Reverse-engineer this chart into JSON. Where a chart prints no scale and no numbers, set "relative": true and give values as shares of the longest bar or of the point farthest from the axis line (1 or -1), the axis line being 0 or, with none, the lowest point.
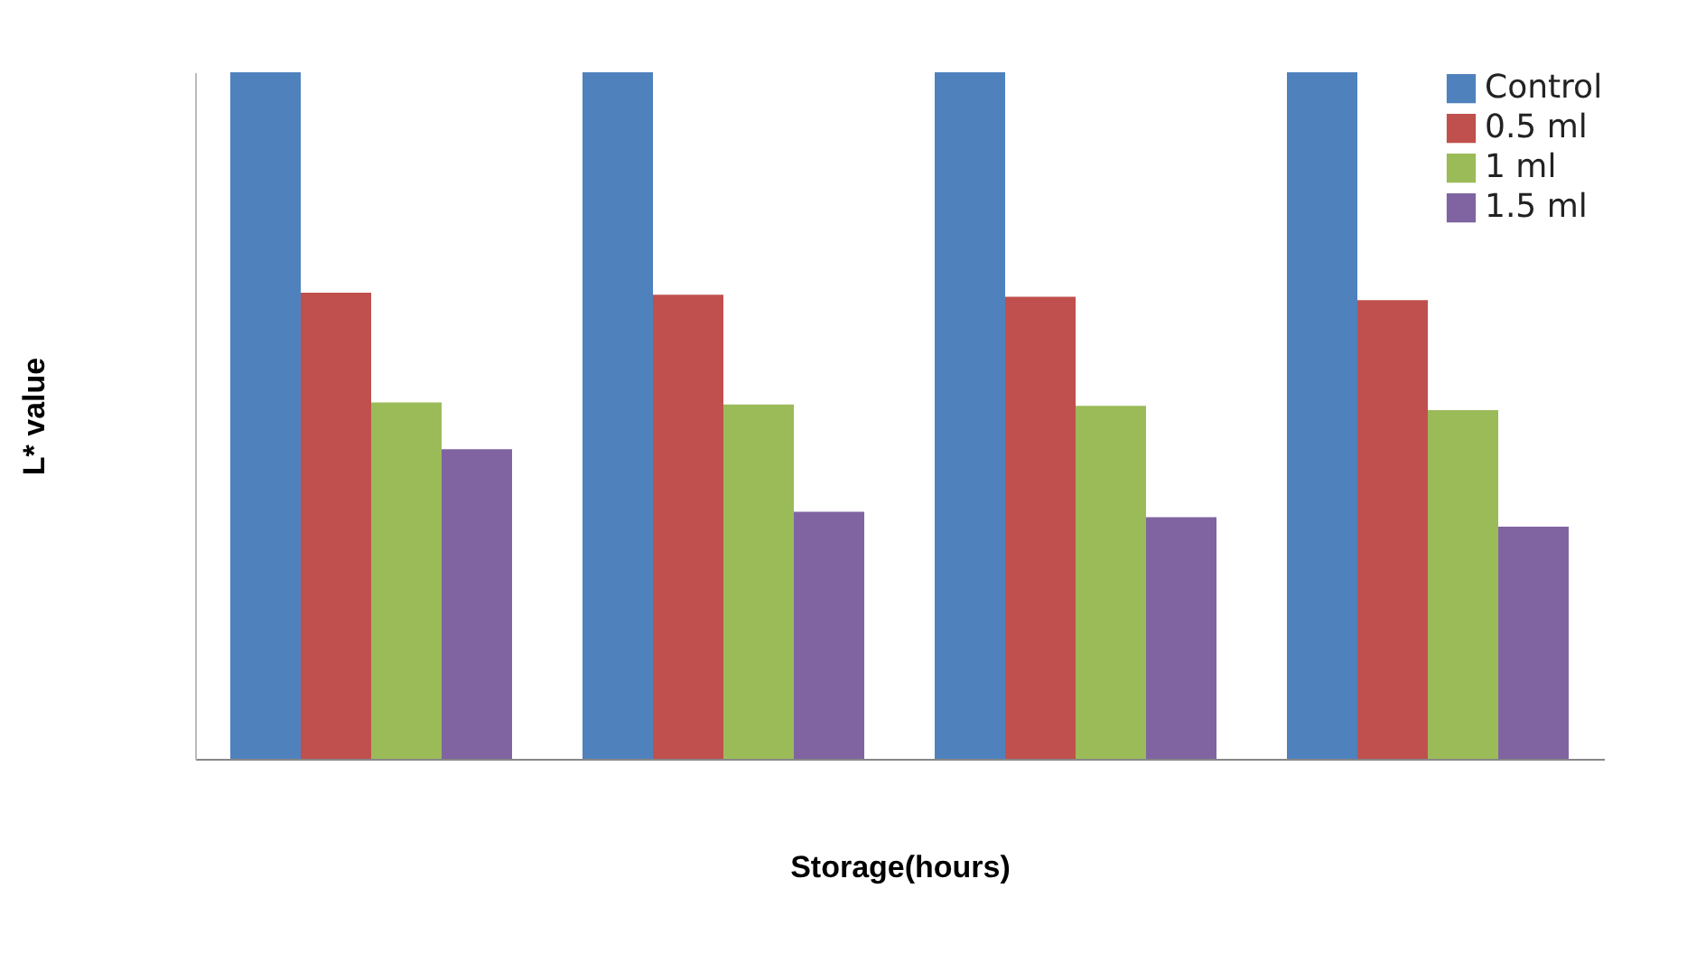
{
  "chart_data": {
    "type": "bar",
    "relative": true,
    "xlabel": "Storage(hours)",
    "ylabel": "L* value",
    "categories": [
      null,
      null,
      null,
      null
    ],
    "series": [
      {
        "name": "Control",
        "color": "#4f81bd",
        "values": [
          1,
          1,
          1,
          1
        ]
      },
      {
        "name": "0.5 ml",
        "color": "#c0504d",
        "values": [
          0.679,
          0.676,
          0.673,
          0.668
        ]
      },
      {
        "name": "1 ml",
        "color": "#9bbb59",
        "values": [
          0.519,
          0.516,
          0.514,
          0.508
        ]
      },
      {
        "name": "1.5 ml",
        "color": "#8064a2",
        "values": [
          0.451,
          0.36,
          0.352,
          0.338
        ]
      }
    ],
    "legend": "top right",
    "grid": false
  }
}
